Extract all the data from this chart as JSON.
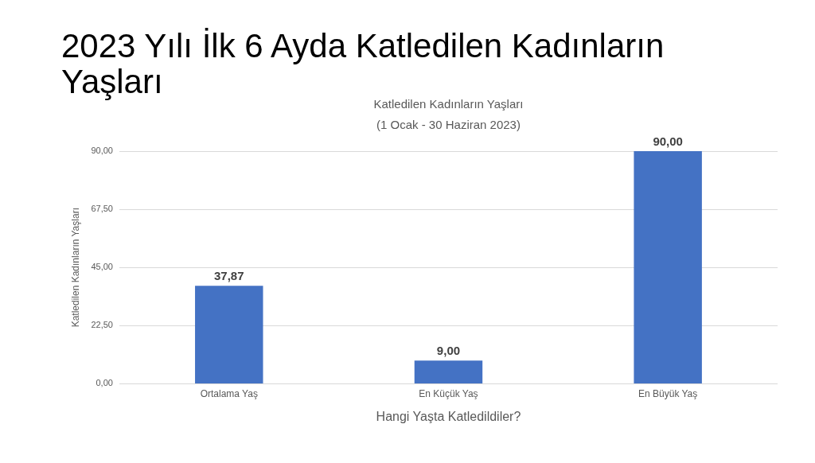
{
  "chart_data": {
    "type": "bar",
    "title": "2023 Yılı İlk 6 Ayda Katledilen Kadınların Yaşları",
    "subtitle": "Katledilen Kadınların Yaşları\n(1 Ocak - 30 Haziran 2023)",
    "xlabel": "Hangi Yaşta Katledildiler?",
    "ylabel": "Katledilen Kadınların Yaşları",
    "categories": [
      "Ortalama Yaş",
      "En Küçük Yaş",
      "En Büyük Yaş"
    ],
    "values": [
      37.87,
      9,
      90
    ],
    "value_labels": [
      "37,87",
      "9,00",
      "90,00"
    ],
    "color": "#4472c4",
    "ylim": [
      0,
      90
    ],
    "yticks": [
      {
        "value": 0,
        "label": "0,00"
      },
      {
        "value": 22.5,
        "label": "22,50"
      },
      {
        "value": 45,
        "label": "45,00"
      },
      {
        "value": 67.5,
        "label": "67,50"
      },
      {
        "value": 90,
        "label": "90,00"
      }
    ],
    "grid": "y"
  }
}
